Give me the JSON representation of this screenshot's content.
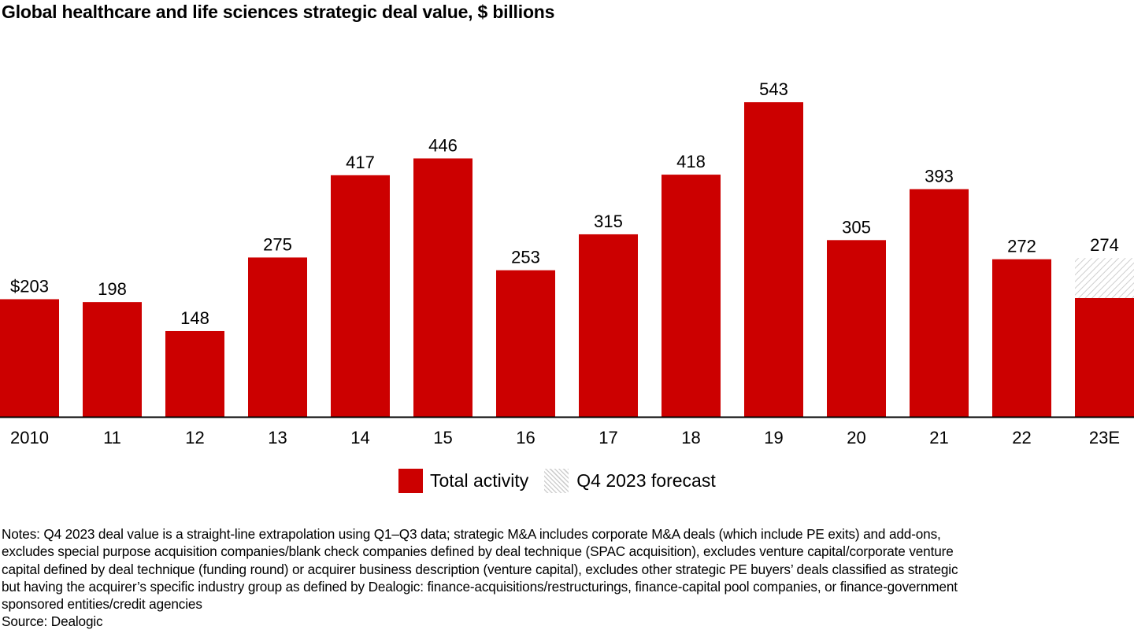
{
  "chart_data": {
    "type": "bar",
    "title": "Global healthcare and life sciences strategic deal value, $ billions",
    "xlabel": "",
    "ylabel": "",
    "ylim": [
      0,
      543
    ],
    "grid": false,
    "categories": [
      "2010",
      "11",
      "12",
      "13",
      "14",
      "15",
      "16",
      "17",
      "18",
      "19",
      "20",
      "21",
      "22",
      "23E"
    ],
    "series": [
      {
        "name": "Total activity",
        "color": "#cc0000",
        "values": [
          203,
          198,
          148,
          275,
          417,
          446,
          253,
          315,
          418,
          543,
          305,
          393,
          272,
          205
        ]
      },
      {
        "name": "Q4 2023 forecast",
        "color": "hatched-gray",
        "values": [
          0,
          0,
          0,
          0,
          0,
          0,
          0,
          0,
          0,
          0,
          0,
          0,
          0,
          69
        ]
      }
    ],
    "data_labels": [
      "$203",
      "198",
      "148",
      "275",
      "417",
      "446",
      "253",
      "315",
      "418",
      "543",
      "305",
      "393",
      "272",
      "274"
    ],
    "totals": [
      203,
      198,
      148,
      275,
      417,
      446,
      253,
      315,
      418,
      543,
      305,
      393,
      272,
      274
    ],
    "legend": {
      "placement": "bottom-center",
      "entries": [
        "Total activity",
        "Q4 2023 forecast"
      ]
    }
  },
  "notes": [
    "Notes: Q4 2023 deal value is a straight-line extrapolation using Q1–Q3 data; strategic M&A includes corporate M&A deals (which include PE exits) and add-ons,",
    "excludes special purpose acquisition companies/blank check companies defined by deal technique (SPAC acquisition), excludes venture capital/corporate venture",
    "capital defined by deal technique (funding round) or acquirer business description (venture capital), excludes other strategic PE buyers’ deals classified as strategic",
    "but having the acquirer’s specific industry group as defined by Dealogic: finance-acquisitions/restructurings, finance-capital pool companies, or finance-government",
    "sponsored entities/credit agencies"
  ],
  "source": "Source: Dealogic"
}
